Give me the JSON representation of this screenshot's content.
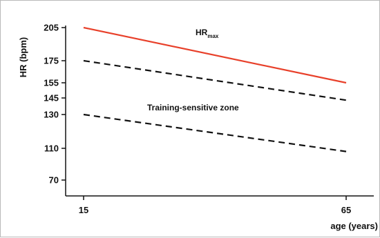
{
  "chart_data": {
    "type": "line",
    "title": "",
    "xlabel": "age (years)",
    "ylabel": "HR (bpm)",
    "x_ticks": [
      "15",
      "65"
    ],
    "y_ticks": [
      "205",
      "175",
      "155",
      "145",
      "130",
      "110",
      "70"
    ],
    "x_ticks_values": [
      15,
      65
    ],
    "y_ticks_values": [
      205,
      175,
      155,
      145,
      130,
      110,
      70
    ],
    "series": [
      {
        "name": "HRmax",
        "style": "solid",
        "color": "#e8402a",
        "x": [
          15,
          65
        ],
        "y": [
          205,
          155
        ]
      },
      {
        "style": "dashed",
        "color": "#111111",
        "x": [
          15,
          65
        ],
        "y": [
          175,
          143
        ]
      },
      {
        "style": "dashed",
        "color": "#111111",
        "x": [
          15,
          65
        ],
        "y": [
          130,
          106
        ]
      }
    ],
    "annotations": {
      "hrmax_main": "HR",
      "hrmax_sub": "max",
      "zone": "Training-sensitive zone"
    },
    "grid": false,
    "legend": "none"
  }
}
